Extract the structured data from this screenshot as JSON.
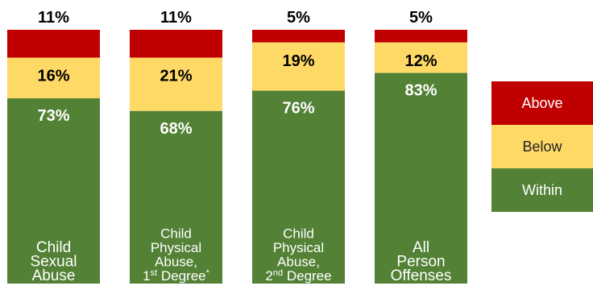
{
  "chart_data": {
    "type": "bar",
    "stacked": true,
    "normalized_percent": true,
    "categories": [
      [
        "Child",
        "Sexual",
        "Abuse"
      ],
      [
        "Child",
        "Physical",
        "Abuse,",
        "1st Degree*"
      ],
      [
        "Child",
        "Physical",
        "Abuse,",
        "2nd Degree"
      ],
      [
        "All",
        "Person",
        "Offenses"
      ]
    ],
    "series": [
      {
        "name": "Within",
        "values": [
          73,
          68,
          76,
          83
        ],
        "color": "#538135"
      },
      {
        "name": "Below",
        "values": [
          16,
          21,
          19,
          12
        ],
        "color": "#FFD966"
      },
      {
        "name": "Above",
        "values": [
          11,
          11,
          5,
          5
        ],
        "color": "#C00000"
      }
    ],
    "data_labels": [
      {
        "within": "73%",
        "below": "16%",
        "above": "11%"
      },
      {
        "within": "68%",
        "below": "21%",
        "above": "11%"
      },
      {
        "within": "76%",
        "below": "19%",
        "above": "5%"
      },
      {
        "within": "83%",
        "below": "12%",
        "above": "5%"
      }
    ],
    "ylim": [
      0,
      100
    ],
    "legend_position": "right",
    "grid": false
  },
  "legend": {
    "items": [
      {
        "label": "Above",
        "color": "#C00000"
      },
      {
        "label": "Below",
        "color": "#FFD966"
      },
      {
        "label": "Within",
        "color": "#538135"
      }
    ]
  }
}
